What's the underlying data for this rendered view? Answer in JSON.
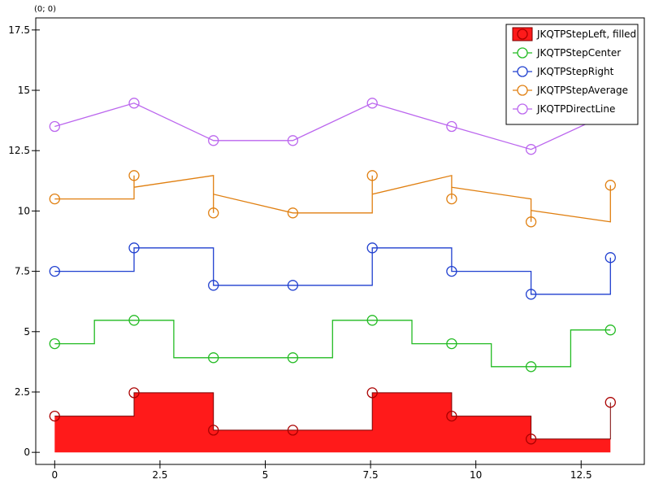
{
  "corner_label": "(0; 0)",
  "chart_data": {
    "type": "line",
    "title": "",
    "xlabel": "",
    "ylabel": "",
    "xlim": [
      -0.45,
      14.0
    ],
    "ylim": [
      -0.5,
      18.0
    ],
    "x_ticks": [
      0,
      2.5,
      5,
      7.5,
      10,
      12.5
    ],
    "x_tick_labels": [
      "0",
      "2.5",
      "5",
      "7.5",
      "10",
      "12.5"
    ],
    "y_ticks": [
      0,
      2.5,
      5,
      7.5,
      10,
      12.5,
      15,
      17.5
    ],
    "y_tick_labels": [
      "0",
      "2.5",
      "5",
      "7.5",
      "10",
      "12.5",
      "15",
      "17.5"
    ],
    "grid": false,
    "legend_position": "top-right",
    "x": [
      0,
      1.885,
      3.77,
      5.655,
      7.54,
      9.425,
      11.31,
      13.195
    ],
    "series": [
      {
        "name": "JKQTPStepLeft, filled",
        "style": "step-left-filled",
        "color": "#ff1a1a",
        "marker_color": "#aa0000",
        "values": [
          1.5,
          2.47,
          0.92,
          0.92,
          2.47,
          1.5,
          0.55,
          2.07
        ]
      },
      {
        "name": "JKQTPStepCenter",
        "style": "step-center",
        "color": "#22bb22",
        "values": [
          4.5,
          5.47,
          3.92,
          3.92,
          5.47,
          4.5,
          3.55,
          5.07
        ]
      },
      {
        "name": "JKQTPStepRight",
        "style": "step-right",
        "color": "#1f3fcf",
        "values": [
          7.5,
          8.47,
          6.92,
          6.92,
          8.47,
          7.5,
          6.55,
          8.07
        ]
      },
      {
        "name": "JKQTPStepAverage",
        "style": "step-average",
        "color": "#e07f10",
        "values": [
          10.5,
          11.47,
          9.92,
          9.92,
          11.47,
          10.5,
          9.55,
          11.07
        ]
      },
      {
        "name": "JKQTPDirectLine",
        "style": "line",
        "color": "#bb66ee",
        "values": [
          13.5,
          14.47,
          12.92,
          12.92,
          14.47,
          13.5,
          12.55,
          14.07
        ]
      }
    ]
  }
}
